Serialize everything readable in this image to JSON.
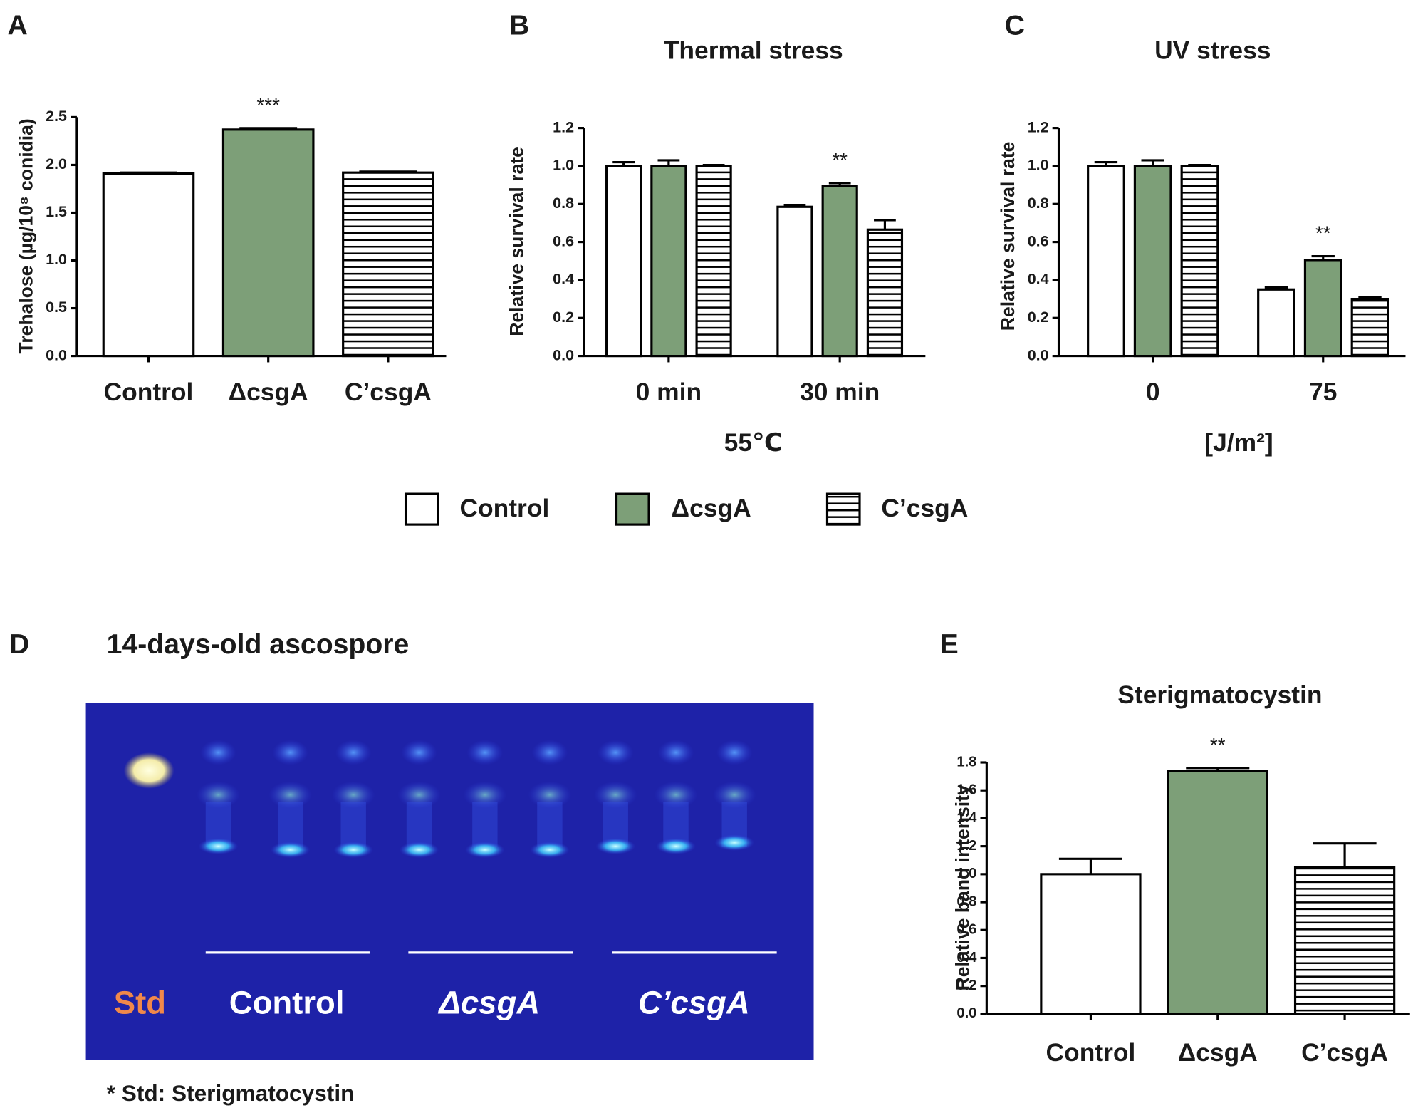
{
  "chart_data": [
    {
      "type": "bar",
      "panel": "A",
      "ylabel": "Trehalose (µg/10⁸ conidia)",
      "categories": [
        "Control",
        "ΔcsgA",
        "C’csgA"
      ],
      "values": [
        1.91,
        2.37,
        1.92
      ],
      "errors": [
        0.01,
        0.015,
        0.01
      ],
      "colors": [
        "#ffffff",
        "#7d9f78",
        "#ffffff"
      ],
      "fill_patterns": [
        null,
        null,
        "horizontal"
      ],
      "ylim": [
        0,
        2.5
      ],
      "yticks": [
        {
          "value": 0,
          "label": "0.0"
        },
        {
          "value": 0.5,
          "label": "0.5"
        },
        {
          "value": 1,
          "label": "1.0"
        },
        {
          "value": 1.5,
          "label": "1.5"
        },
        {
          "value": 2,
          "label": "2.0"
        },
        {
          "value": 2.5,
          "label": "2.5"
        }
      ],
      "annotations": [
        {
          "text": "***",
          "category": 1
        }
      ]
    },
    {
      "type": "grouped_bar",
      "panel": "B",
      "title": "Thermal stress",
      "ylabel": "Relative survival rate",
      "xlabel": "55℃",
      "categories": [
        "0 min",
        "30 min"
      ],
      "series": [
        {
          "name": "Control",
          "color": "#ffffff",
          "values": [
            1.0,
            0.785
          ],
          "errors": [
            0.02,
            0.01
          ]
        },
        {
          "name": "ΔcsgA",
          "color": "#7d9f78",
          "values": [
            1.0,
            0.895
          ],
          "errors": [
            0.03,
            0.015
          ]
        },
        {
          "name": "C’csgA",
          "color": "#ffffff",
          "pattern": "horizontal",
          "values": [
            1.0,
            0.665
          ],
          "errors": [
            0.005,
            0.05
          ]
        }
      ],
      "ylim": [
        0,
        1.2
      ],
      "yticks": [
        {
          "value": 0,
          "label": "0.0"
        },
        {
          "value": 0.2,
          "label": "0.2"
        },
        {
          "value": 0.4,
          "label": "0.4"
        },
        {
          "value": 0.6,
          "label": "0.6"
        },
        {
          "value": 0.8,
          "label": "0.8"
        },
        {
          "value": 1,
          "label": "1.0"
        },
        {
          "value": 1.2,
          "label": "1.2"
        }
      ],
      "annotations": [
        {
          "text": "**",
          "category": 1,
          "series": 1
        }
      ]
    },
    {
      "type": "grouped_bar",
      "panel": "C",
      "title": "UV stress",
      "ylabel": "Relative survival rate",
      "xlabel": "[J/m²]",
      "categories": [
        "0",
        "75"
      ],
      "series": [
        {
          "name": "Control",
          "color": "#ffffff",
          "values": [
            1.0,
            0.35
          ],
          "errors": [
            0.02,
            0.01
          ]
        },
        {
          "name": "ΔcsgA",
          "color": "#7d9f78",
          "values": [
            1.0,
            0.505
          ],
          "errors": [
            0.03,
            0.02
          ]
        },
        {
          "name": "C’csgA",
          "color": "#ffffff",
          "pattern": "horizontal",
          "values": [
            1.0,
            0.3
          ],
          "errors": [
            0.005,
            0.01
          ]
        }
      ],
      "ylim": [
        0,
        1.2
      ],
      "yticks": [
        {
          "value": 0,
          "label": "0.0"
        },
        {
          "value": 0.2,
          "label": "0.2"
        },
        {
          "value": 0.4,
          "label": "0.4"
        },
        {
          "value": 0.6,
          "label": "0.6"
        },
        {
          "value": 0.8,
          "label": "0.8"
        },
        {
          "value": 1,
          "label": "1.0"
        },
        {
          "value": 1.2,
          "label": "1.2"
        }
      ],
      "annotations": [
        {
          "text": "**",
          "category": 1,
          "series": 1
        }
      ]
    },
    {
      "type": "bar",
      "panel": "E",
      "title": "Sterigmatocystin",
      "ylabel": "Relative band intensity",
      "categories": [
        "Control",
        "ΔcsgA",
        "C’csgA"
      ],
      "values": [
        1.0,
        1.74,
        1.05
      ],
      "errors": [
        0.11,
        0.02,
        0.17
      ],
      "colors": [
        "#ffffff",
        "#7d9f78",
        "#ffffff"
      ],
      "fill_patterns": [
        null,
        null,
        "horizontal"
      ],
      "ylim": [
        0,
        1.8
      ],
      "yticks": [
        {
          "value": 0,
          "label": "0.0"
        },
        {
          "value": 0.2,
          "label": "0.2"
        },
        {
          "value": 0.4,
          "label": "0.4"
        },
        {
          "value": 0.6,
          "label": "0.6"
        },
        {
          "value": 0.8,
          "label": "0.8"
        },
        {
          "value": 1,
          "label": "1.0"
        },
        {
          "value": 1.2,
          "label": "1.2"
        },
        {
          "value": 1.4,
          "label": "1.4"
        },
        {
          "value": 1.6,
          "label": "1.6"
        },
        {
          "value": 1.8,
          "label": "1.8"
        }
      ],
      "annotations": [
        {
          "text": "**",
          "category": 1
        }
      ]
    }
  ],
  "image_panel": {
    "panel": "D",
    "title": "14-days-old ascospore",
    "lane_labels": [
      "Std",
      "Control",
      "ΔcsgA",
      "C’csgA"
    ],
    "footnote": "* Std: Sterigmatocystin"
  }
}
